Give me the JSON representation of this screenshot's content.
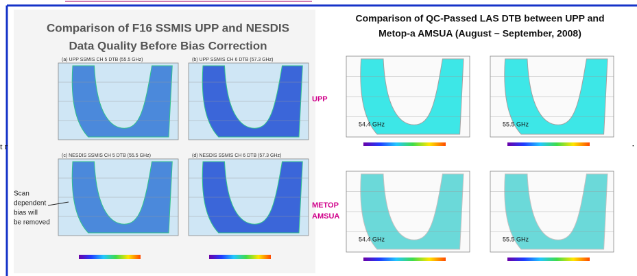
{
  "left": {
    "title": [
      "Comparison of F16 SSMIS UPP and NESDIS",
      "Data Quality Before Bias Correction"
    ],
    "panels": [
      "(a) UPP SSMIS CH 5 DTB (55.5 GHz)",
      "(b) UPP SSMIS CH 6 DTB (57.3 GHz)",
      "(c) NESDIS SSMIS CH 5 DTB (55.5 GHz)",
      "(d) NESDIS SSMIS CH 6 DTB (57.3 GHz)"
    ],
    "annotation": [
      "Scan",
      "dependent",
      "bias will",
      "be removed"
    ]
  },
  "right": {
    "title": [
      "Comparison of QC-Passed LAS DTB between UPP and",
      "Metop-a AMSUA (August ~ September, 2008)"
    ],
    "row_labels": [
      [
        "UPP"
      ],
      [
        "METOP",
        "AMSUA"
      ]
    ],
    "panel_labels": [
      "54.4 GHz",
      "55.5 GHz",
      "54.4 GHz",
      "55.5 GHz"
    ]
  },
  "edge": {
    "left": "t r",
    "right": "·"
  }
}
